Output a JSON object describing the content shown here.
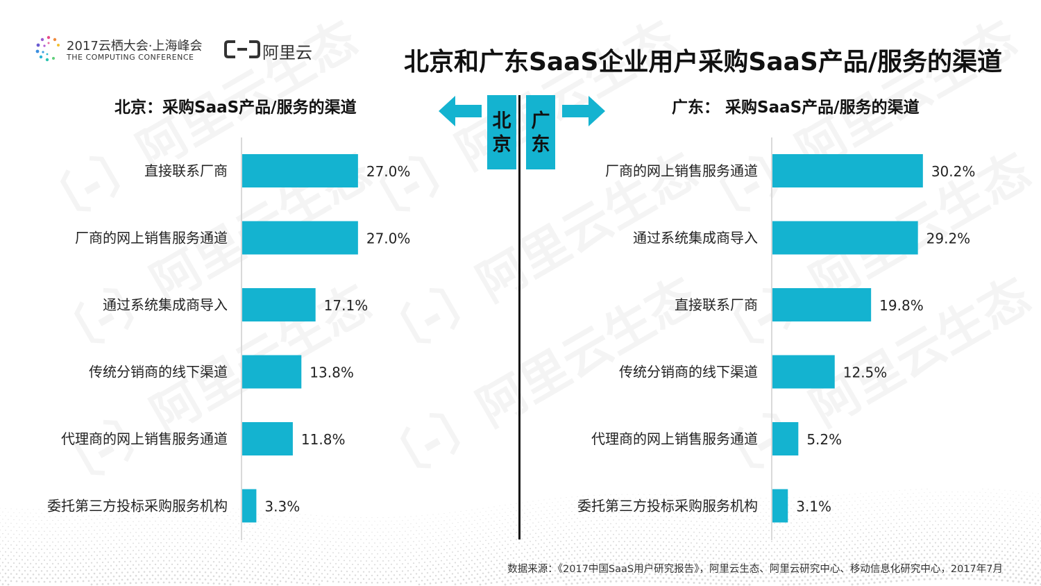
{
  "header": {
    "conference_title": "2017云栖大会·上海峰会",
    "conference_subtitle": "THE COMPUTING CONFERENCE",
    "brand_name": "阿里云",
    "main_title": "北京和广东SaaS企业用户采购SaaS产品/服务的渠道"
  },
  "divider_labels": {
    "left": [
      "北",
      "京"
    ],
    "right": [
      "广",
      "东"
    ]
  },
  "colors": {
    "bar": "#14b3d0",
    "axis": "#d9d9d9",
    "text": "#222222"
  },
  "icons": {
    "left_arrow": "arrow-left-icon",
    "right_arrow": "arrow-right-icon",
    "conference_logo": "computing-conference-logo-icon",
    "brand_logo": "aliyun-logo-icon"
  },
  "chart_data": [
    {
      "type": "bar",
      "orientation": "horizontal",
      "title": "北京：采购SaaS产品/服务的渠道",
      "categories": [
        "直接联系厂商",
        "厂商的网上销售服务通道",
        "通过系统集成商导入",
        "传统分销商的线下渠道",
        "代理商的网上销售服务通道",
        "委托第三方投标采购服务机构"
      ],
      "values": [
        27.0,
        27.0,
        17.1,
        13.8,
        11.8,
        3.3
      ],
      "value_labels": [
        "27.0%",
        "27.0%",
        "17.1%",
        "13.8%",
        "11.8%",
        "3.3%"
      ],
      "xlim": [
        0,
        50
      ],
      "grid": false
    },
    {
      "type": "bar",
      "orientation": "horizontal",
      "title": "广东：  采购SaaS产品/服务的渠道",
      "categories": [
        "厂商的网上销售服务通道",
        "通过系统集成商导入",
        "直接联系厂商",
        "传统分销商的线下渠道",
        "代理商的网上销售服务通道",
        "委托第三方投标采购服务机构"
      ],
      "values": [
        30.2,
        29.2,
        19.8,
        12.5,
        5.2,
        3.1
      ],
      "value_labels": [
        "30.2%",
        "29.2%",
        "19.8%",
        "12.5%",
        "5.2%",
        "3.1%"
      ],
      "xlim": [
        0,
        50
      ],
      "grid": false
    }
  ],
  "footer": {
    "source": "数据来源：《2017中国SaaS用户研究报告》，阿里云生态、阿里云研究中心、移动信息化研究中心，2017年7月"
  }
}
